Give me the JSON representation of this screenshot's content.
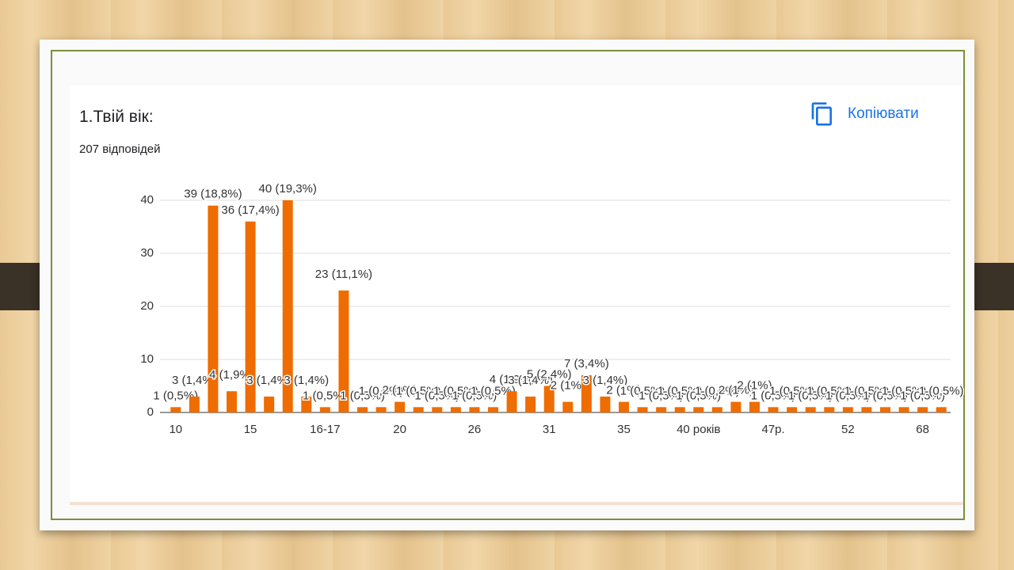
{
  "title": "1.Твій вік:",
  "responses": "207 відповідей",
  "copy_button": "Копіювати",
  "chart_data": {
    "type": "bar",
    "color": "#ef6c00",
    "grid": true,
    "ylim": [
      0,
      40
    ],
    "yticks": [
      0,
      10,
      20,
      30,
      40
    ],
    "categories": [
      "10",
      null,
      null,
      null,
      "15",
      null,
      null,
      null,
      "16-17",
      null,
      null,
      null,
      "20",
      null,
      null,
      null,
      "26",
      null,
      null,
      null,
      "31",
      null,
      null,
      null,
      "35",
      null,
      null,
      null,
      "40 років",
      null,
      null,
      null,
      "47р.",
      null,
      null,
      null,
      "52",
      null,
      null,
      null,
      "68",
      null
    ],
    "values": [
      1,
      3,
      39,
      4,
      36,
      3,
      40,
      3,
      1,
      23,
      1,
      1,
      2,
      1,
      1,
      1,
      1,
      1,
      4,
      3,
      5,
      2,
      7,
      3,
      2,
      1,
      1,
      1,
      1,
      1,
      2,
      2,
      1,
      1,
      1,
      1,
      1,
      1,
      1,
      1,
      1,
      1
    ],
    "value_labels": [
      "1 (0,5%)",
      "3 (1,4%)",
      "39 (18,8%)",
      "4 (1,9%)",
      "36 (17,4%)",
      "3 (1,4%)",
      "40 (19,3%)",
      "3 (1,4%)",
      "1 (0,5%)",
      "23 (11,1%)",
      "1 (0,5%)",
      "1 (0,5%)",
      "2 (1%)",
      "1 (0,5%)",
      "1 (0,5%)",
      "1 (0,5%)",
      "1 (0,5%)",
      "1 (0,5%)",
      "4 (1,9%)",
      "3 (1,4%)",
      "5 (2,4%)",
      "2 (1%)",
      "7 (3,4%)",
      "3 (1,4%)",
      "2 (1%)",
      "1 (0,5%)",
      "1 (0,5%)",
      "1 (0,5%)",
      "1 (0,5%)",
      "1 (0,5%)",
      "2 (1%)",
      "2 (1%)",
      "1 (0,5%)",
      "1 (0,5%)",
      "1 (0,5%)",
      "1 (0,5%)",
      "1 (0,5%)",
      "1 (0,5%)",
      "1 (0,5%)",
      "1 (0,5%)",
      "1 (0,5%)",
      "1 (0,5%)"
    ]
  }
}
